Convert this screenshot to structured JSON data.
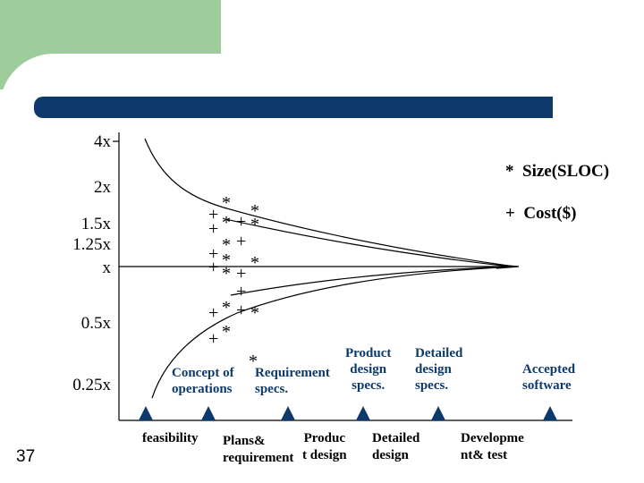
{
  "chart_data": {
    "type": "line",
    "title": "",
    "y_tick_labels": [
      "4x",
      "2x",
      "1.5x",
      "1.25x",
      "x",
      "0.5x",
      "0.25x"
    ],
    "legend": {
      "size_label": "Size(SLOC)",
      "cost_label": "Cost($)",
      "size_symbol": "*",
      "cost_symbol": "+"
    },
    "series": [
      {
        "name": "upper-bound",
        "description": "estimate uncertainty upper envelope converging from 4x toward x"
      },
      {
        "name": "lower-bound",
        "description": "estimate uncertainty lower envelope converging from 0.25x toward x"
      }
    ],
    "milestones_top": [
      {
        "lines": [
          "Concept of",
          "operations"
        ]
      },
      {
        "lines": [
          "Requirement",
          "specs."
        ]
      },
      {
        "lines": [
          "Product",
          "design",
          "specs."
        ]
      },
      {
        "lines": [
          "Detailed",
          "design",
          "specs."
        ]
      },
      {
        "lines": [
          "Accepted",
          "software"
        ]
      }
    ],
    "phases_bottom": [
      {
        "lines": [
          "feasibility"
        ]
      },
      {
        "lines": [
          "Plans&",
          "requirement"
        ]
      },
      {
        "lines": [
          "Produc",
          "t design"
        ]
      },
      {
        "lines": [
          "Detailed",
          "design"
        ]
      },
      {
        "lines": [
          "Developme",
          "nt& test"
        ]
      }
    ]
  },
  "slide_number": "37"
}
